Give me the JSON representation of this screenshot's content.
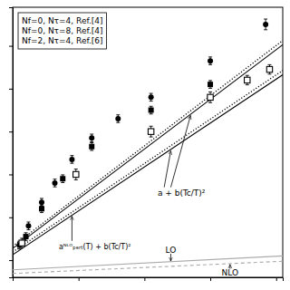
{
  "chart_data": {
    "type": "scatter",
    "xlim": [
      1.0,
      3.05
    ],
    "ylim": [
      -0.08,
      1.18
    ],
    "xticks": [
      1.0,
      1.5,
      2.0,
      2.5,
      3.0
    ],
    "yticks": [
      0,
      0.2,
      0.4,
      0.6,
      0.8,
      1.0
    ],
    "tick_labels": false,
    "grid": false,
    "legend": "upper left",
    "series": [
      {
        "type": "line",
        "color": "#000000",
        "line_style": "solid",
        "x": [
          1.0,
          3.05
        ],
        "values": [
          0.055,
          1.005
        ]
      },
      {
        "type": "line",
        "color": "#000000",
        "line_style": "solid",
        "x": [
          1.0,
          3.05
        ],
        "values": [
          0.025,
          0.865
        ]
      },
      {
        "type": "line",
        "color": "#000000",
        "line_style": "dotted",
        "x": [
          1.0,
          3.05
        ],
        "values": [
          0.065,
          1.025
        ]
      },
      {
        "type": "line",
        "color": "#000000",
        "line_style": "dotted",
        "x": [
          1.0,
          3.05
        ],
        "values": [
          0.038,
          0.885
        ]
      },
      {
        "type": "line",
        "color": "#aaaaaa",
        "line_style": "solid",
        "x": [
          1.0,
          3.05
        ],
        "values": [
          -0.045,
          0.02
        ]
      },
      {
        "type": "line",
        "color": "#aaaaaa",
        "line_style": "dashed",
        "x": [
          1.0,
          3.05
        ],
        "values": [
          -0.062,
          -0.005
        ]
      },
      {
        "name": "Nf=0, Nτ=4, Ref.[4]",
        "type": "scatter",
        "marker": "circle",
        "color": "#000000",
        "x": [
          1.05,
          1.12,
          1.22,
          1.32,
          1.45,
          1.6,
          1.8,
          2.05,
          2.5,
          2.92
        ],
        "values": [
          0.07,
          0.16,
          0.27,
          0.36,
          0.47,
          0.57,
          0.66,
          0.76,
          0.93,
          1.1
        ],
        "yerr": [
          0.018,
          0.018,
          0.018,
          0.018,
          0.018,
          0.018,
          0.018,
          0.018,
          0.018,
          0.025
        ]
      },
      {
        "name": "Nf=0, Nτ=8, Ref.[4]",
        "type": "scatter",
        "marker": "square",
        "color": "#000000",
        "x": [
          1.1,
          1.22,
          1.38,
          1.6,
          2.05,
          2.5
        ],
        "values": [
          0.11,
          0.24,
          0.38,
          0.53,
          0.7,
          0.82
        ],
        "yerr": [
          0.018,
          0.018,
          0.018,
          0.018,
          0.018,
          0.018
        ]
      },
      {
        "name": "Nf=2, Nτ=4, Ref.[6]",
        "type": "scatter",
        "marker": "square-open",
        "color": "#000000",
        "x": [
          1.07,
          1.48,
          2.05,
          2.5,
          2.78,
          2.95
        ],
        "values": [
          0.08,
          0.4,
          0.6,
          0.76,
          0.84,
          0.89
        ],
        "yerr": [
          0.022,
          0.025,
          0.025,
          0.025,
          0.022,
          0.022
        ]
      }
    ],
    "annotations": [
      "a + b(Tc/T)²",
      "aᴺᴸᴼₚₑᵣₜ(T) + b(Tc/T)²",
      "LO",
      "NLO"
    ]
  }
}
